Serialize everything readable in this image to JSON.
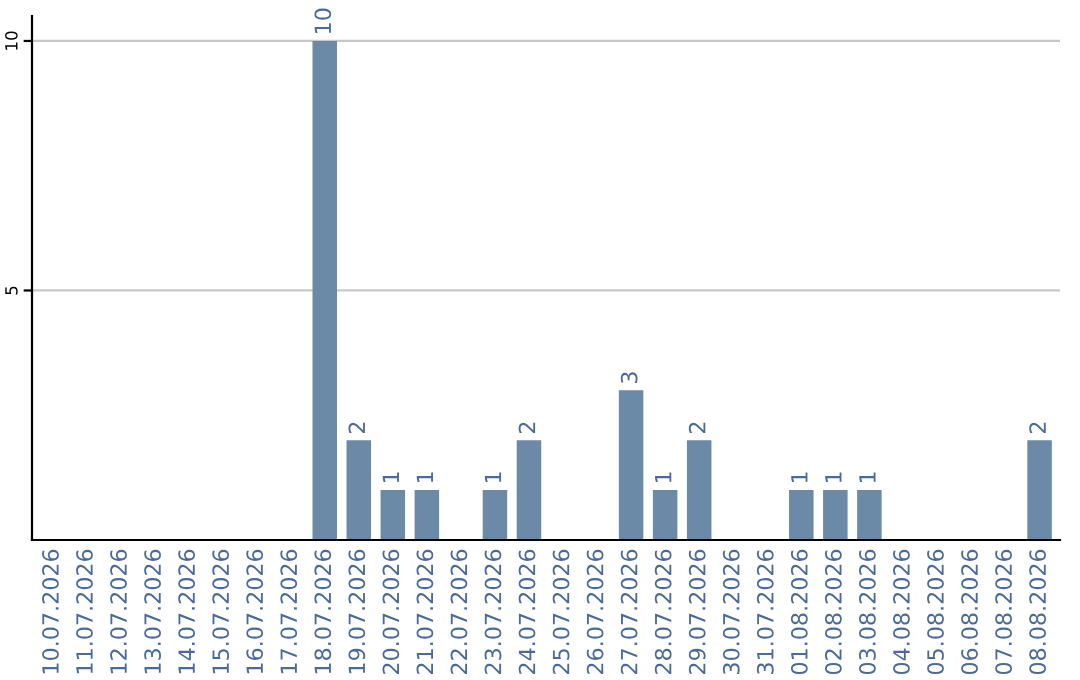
{
  "chart_data": {
    "type": "bar",
    "categories": [
      "10.07.2026",
      "11.07.2026",
      "12.07.2026",
      "13.07.2026",
      "14.07.2026",
      "15.07.2026",
      "16.07.2026",
      "17.07.2026",
      "18.07.2026",
      "19.07.2026",
      "20.07.2026",
      "21.07.2026",
      "22.07.2026",
      "23.07.2026",
      "24.07.2026",
      "25.07.2026",
      "26.07.2026",
      "27.07.2026",
      "28.07.2026",
      "29.07.2026",
      "30.07.2026",
      "31.07.2026",
      "01.08.2026",
      "02.08.2026",
      "03.08.2026",
      "04.08.2026",
      "05.08.2026",
      "06.08.2026",
      "07.08.2026",
      "08.08.2026"
    ],
    "values": [
      0,
      0,
      0,
      0,
      0,
      0,
      0,
      0,
      10,
      2,
      1,
      1,
      0,
      1,
      2,
      0,
      0,
      3,
      1,
      2,
      0,
      0,
      1,
      1,
      1,
      0,
      0,
      0,
      0,
      2
    ],
    "value_labels": [
      null,
      null,
      null,
      null,
      null,
      null,
      null,
      null,
      "10",
      "2",
      "1",
      "1",
      null,
      "1",
      "2",
      null,
      null,
      "3",
      "1",
      "2",
      null,
      null,
      "1",
      "1",
      "1",
      null,
      null,
      null,
      null,
      "2"
    ],
    "color": "#6a8aa8",
    "ylim": [
      0,
      10.5
    ],
    "yticks": [
      5,
      10
    ],
    "grid": "y"
  }
}
